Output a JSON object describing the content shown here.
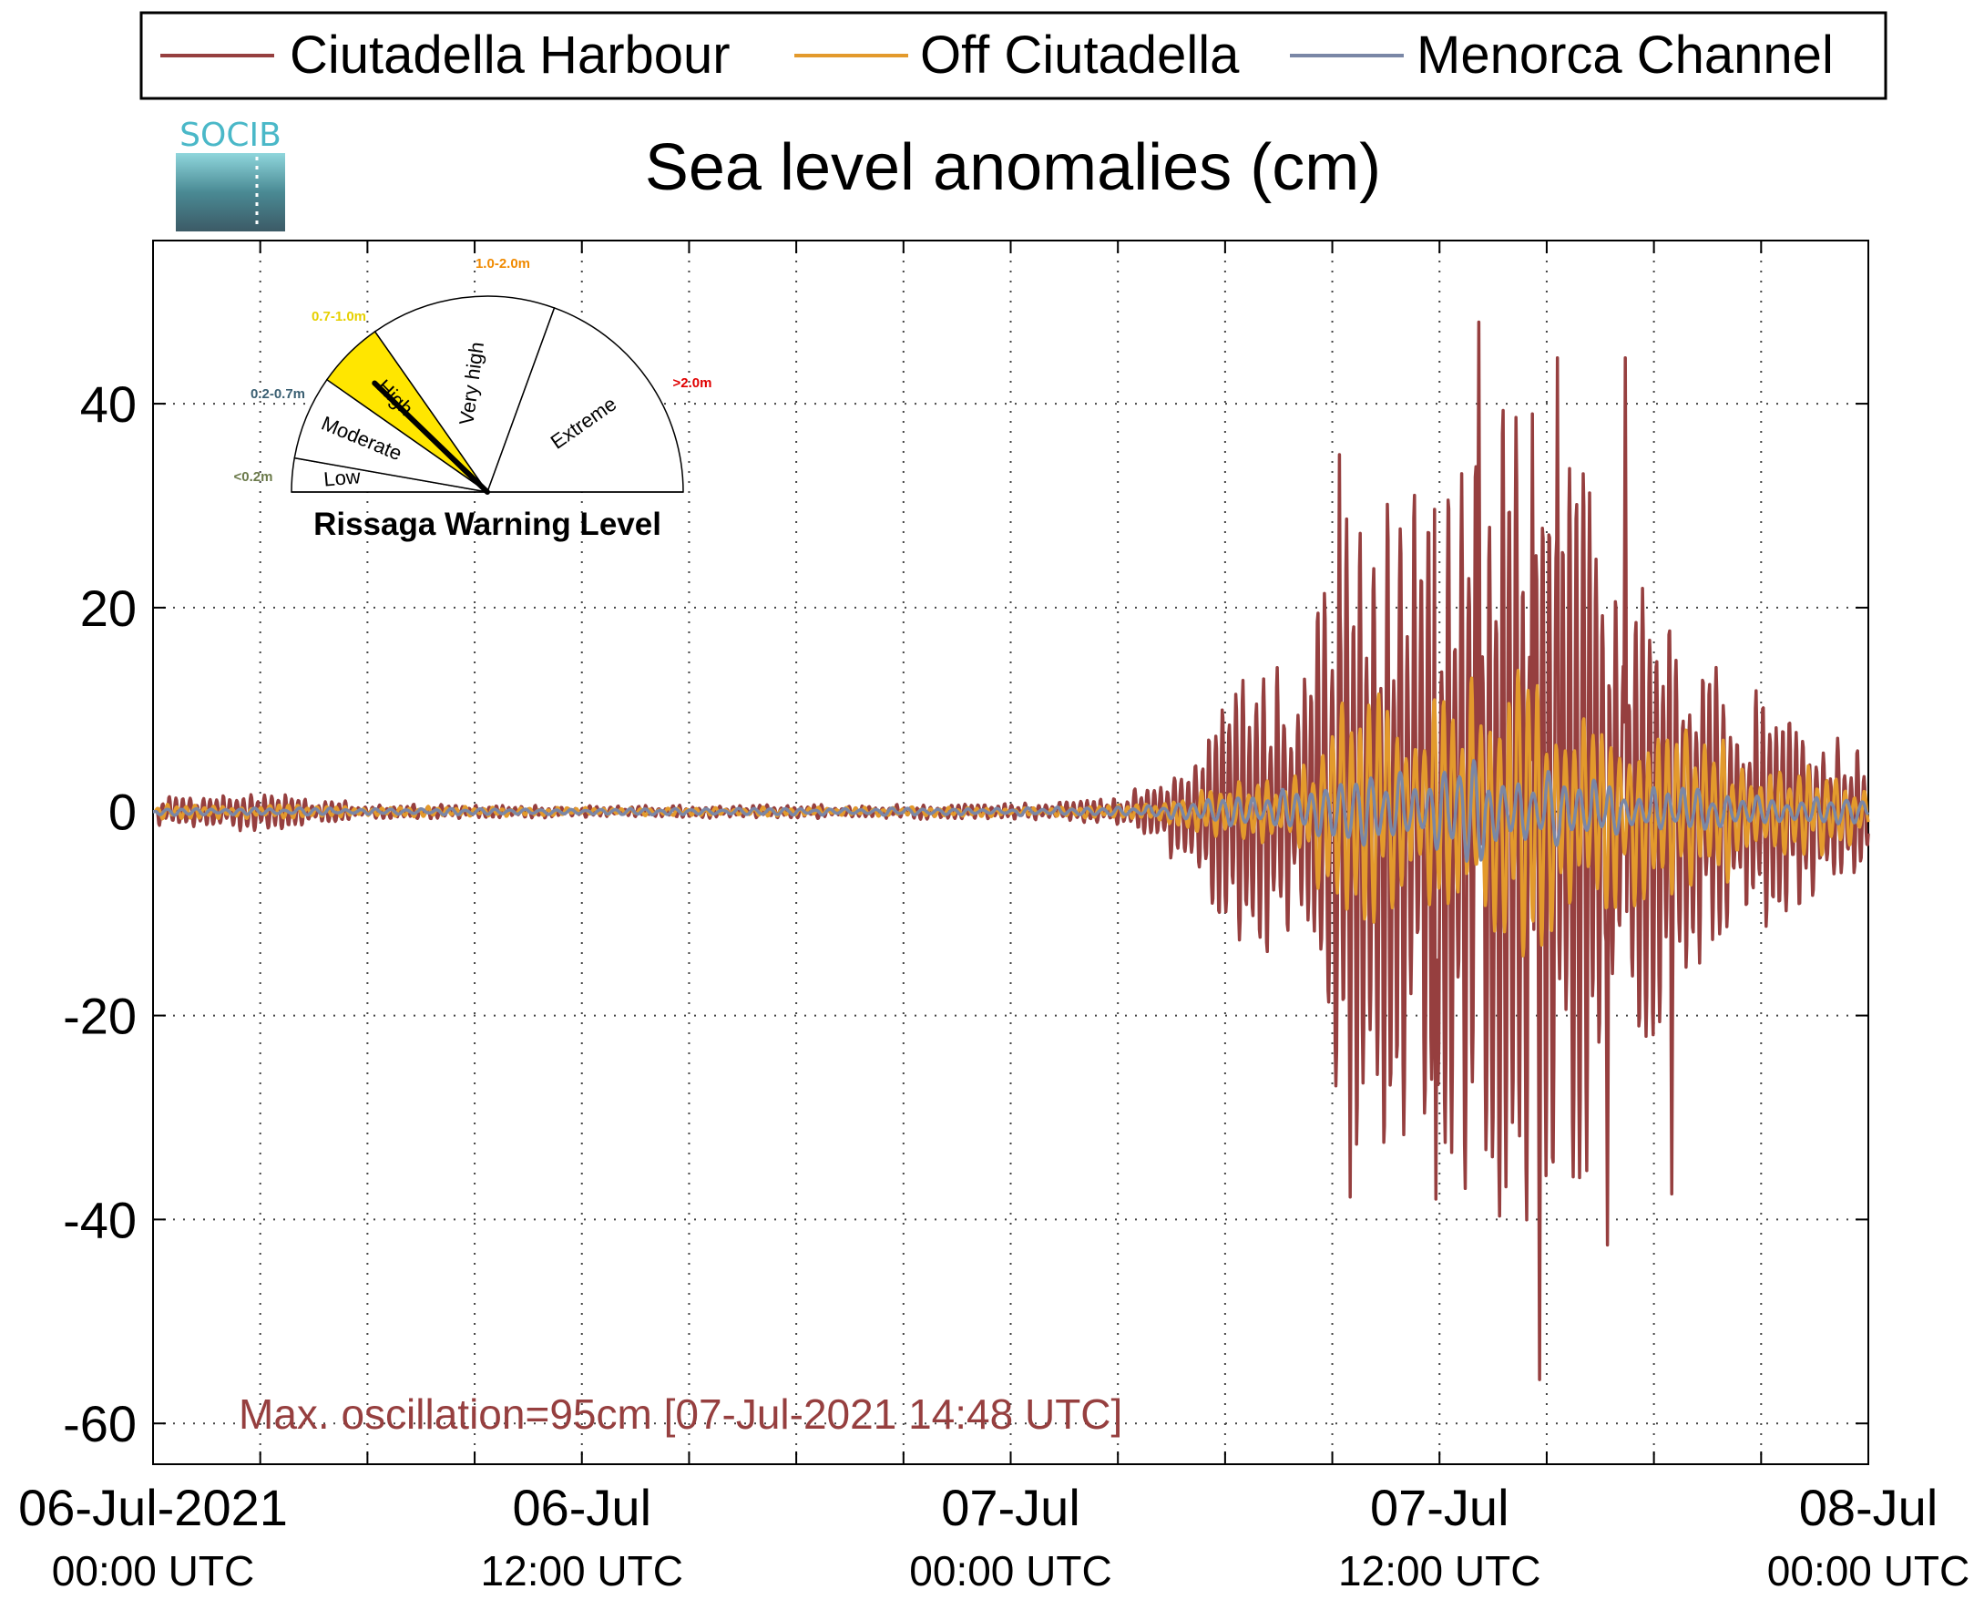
{
  "title": "Sea level anomalies (cm)",
  "logo": {
    "text": "SOCIB",
    "icon": "socib-logo-icon"
  },
  "legend": [
    {
      "name": "Ciutadella Harbour",
      "color": "#963f3f"
    },
    {
      "name": "Off Ciutadella",
      "color": "#e39a2c"
    },
    {
      "name": "Menorca Channel",
      "color": "#7a87a6"
    }
  ],
  "annotation": {
    "text": "Max. oscillation=95cm [07-Jul-2021 14:48 UTC]",
    "color": "#963f3f"
  },
  "warning_gauge": {
    "title": "Rissaga Warning Level",
    "current_level": "High",
    "levels": [
      {
        "name": "Low",
        "range": "<0.2m",
        "range_color": "#6b7a4a",
        "fill": "#ffffff"
      },
      {
        "name": "Moderate",
        "range": "0.2-0.7m",
        "range_color": "#3a5f72",
        "fill": "#ffffff"
      },
      {
        "name": "High",
        "range": "0.7-1.0m",
        "range_color": "#e6d000",
        "fill": "#ffe600"
      },
      {
        "name": "Very high",
        "range": "1.0-2.0m",
        "range_color": "#f08a00",
        "fill": "#ffffff"
      },
      {
        "name": "Extreme",
        "range": ">2.0m",
        "range_color": "#e00000",
        "fill": "#ffffff"
      }
    ]
  },
  "chart_data": {
    "type": "line",
    "title": "Sea level anomalies (cm)",
    "xlabel": "",
    "ylabel": "",
    "ylim": [
      -64,
      56
    ],
    "yticks": [
      40,
      20,
      0,
      -20,
      -40,
      -60
    ],
    "xlim_hours": [
      0,
      48
    ],
    "x_ticks": [
      {
        "line1": "06-Jul-2021",
        "line2": "00:00 UTC",
        "hour": 0
      },
      {
        "line1": "06-Jul",
        "line2": "12:00 UTC",
        "hour": 12
      },
      {
        "line1": "07-Jul",
        "line2": "00:00 UTC",
        "hour": 24
      },
      {
        "line1": "07-Jul",
        "line2": "12:00 UTC",
        "hour": 36
      },
      {
        "line1": "08-Jul",
        "line2": "00:00 UTC",
        "hour": 48
      }
    ],
    "grid": true,
    "legend_position": "top",
    "series": [
      {
        "name": "Ciutadella Harbour",
        "color": "#963f3f",
        "envelope": [
          [
            0,
            1.5
          ],
          [
            3,
            2
          ],
          [
            6,
            0.8
          ],
          [
            12,
            0.6
          ],
          [
            18,
            0.7
          ],
          [
            24,
            0.8
          ],
          [
            27,
            1.5
          ],
          [
            29,
            6
          ],
          [
            30,
            12
          ],
          [
            31,
            16
          ],
          [
            32,
            12
          ],
          [
            33,
            30
          ],
          [
            34,
            36
          ],
          [
            35,
            32
          ],
          [
            36,
            34
          ],
          [
            37,
            42
          ],
          [
            38,
            45
          ],
          [
            39,
            40
          ],
          [
            40,
            36
          ],
          [
            41,
            28
          ],
          [
            42,
            22
          ],
          [
            43,
            16
          ],
          [
            44,
            14
          ],
          [
            45,
            12
          ],
          [
            46,
            10
          ],
          [
            47,
            9
          ],
          [
            48,
            7
          ]
        ],
        "peaks": [
          {
            "x": 37.1,
            "y": 48
          },
          {
            "x": 38.8,
            "y": -55.7
          },
          {
            "x": 39.3,
            "y": 44.5
          },
          {
            "x": 38.6,
            "y": 39
          },
          {
            "x": 33.5,
            "y": -37.8
          },
          {
            "x": 33.2,
            "y": 35
          },
          {
            "x": 35.9,
            "y": -38
          },
          {
            "x": 40.7,
            "y": -42.5
          },
          {
            "x": 41.2,
            "y": 44.5
          },
          {
            "x": 42.5,
            "y": -37.5
          }
        ]
      },
      {
        "name": "Off Ciutadella",
        "color": "#e39a2c",
        "envelope": [
          [
            0,
            0.8
          ],
          [
            12,
            0.4
          ],
          [
            24,
            0.5
          ],
          [
            28,
            0.8
          ],
          [
            30,
            3
          ],
          [
            32,
            4
          ],
          [
            33,
            11
          ],
          [
            35,
            12
          ],
          [
            36,
            11
          ],
          [
            37,
            15
          ],
          [
            38,
            15
          ],
          [
            39,
            13
          ],
          [
            40,
            12
          ],
          [
            42,
            9
          ],
          [
            44,
            7
          ],
          [
            46,
            5
          ],
          [
            48,
            3
          ]
        ],
        "peaks": []
      },
      {
        "name": "Menorca Channel",
        "color": "#7a87a6",
        "envelope": [
          [
            0,
            0.4
          ],
          [
            12,
            0.3
          ],
          [
            24,
            0.4
          ],
          [
            28,
            0.6
          ],
          [
            30,
            1.5
          ],
          [
            32,
            2.5
          ],
          [
            34,
            4
          ],
          [
            36,
            4
          ],
          [
            37,
            5.5
          ],
          [
            38,
            4.5
          ],
          [
            40,
            3.5
          ],
          [
            42,
            2.5
          ],
          [
            44,
            2
          ],
          [
            46,
            1.5
          ],
          [
            48,
            1
          ]
        ],
        "peaks": []
      }
    ]
  }
}
